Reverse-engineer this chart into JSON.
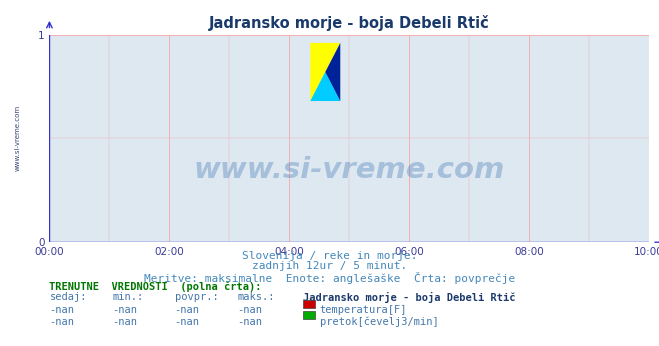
{
  "title": "Jadransko morje - boja Debeli Rtič",
  "title_color": "#1a3a6b",
  "bg_color": "#ffffff",
  "plot_bg_color": "#dde8f0",
  "grid_color": "#ff9999",
  "axis_color": "#3333cc",
  "watermark_text": "www.si-vreme.com",
  "watermark_color": "#1a5aaa",
  "watermark_alpha": 0.28,
  "sidebar_text": "www.si-vreme.com",
  "sidebar_bg": "#aabbcc",
  "sidebar_color": "#334477",
  "xlim": [
    0,
    10
  ],
  "ylim": [
    0,
    1
  ],
  "xticks": [
    0,
    2,
    4,
    6,
    8,
    10
  ],
  "xticklabels": [
    "00:00",
    "02:00",
    "04:00",
    "06:00",
    "08:00",
    "10:00"
  ],
  "yticks": [
    0,
    1
  ],
  "yticklabels": [
    "0",
    "1"
  ],
  "tick_color": "#3a3a99",
  "tick_fontsize": 7.5,
  "subtitle_lines": [
    "Slovenija / reke in morje.",
    "zadnjih 12ur / 5 minut.",
    "Meritve: maksimalne  Enote: anglešaške  Črta: povprečje"
  ],
  "subtitle_color": "#4488bb",
  "subtitle_fontsize": 8,
  "table_header": "TRENUTNE  VREDNOSTI  (polna črta):",
  "table_header_color": "#007700",
  "table_header_fontsize": 7.5,
  "col_headers": [
    "sedaj:",
    "min.:",
    "povpr.:",
    "maks.:"
  ],
  "col_header_color": "#4477aa",
  "col_header_fontsize": 7.5,
  "rows": [
    [
      "-nan",
      "-nan",
      "-nan",
      "-nan"
    ],
    [
      "-nan",
      "-nan",
      "-nan",
      "-nan"
    ]
  ],
  "row_color": "#4477aa",
  "row_fontsize": 7.5,
  "legend_title": "Jadransko morje - boja Debeli Rtič",
  "legend_title_color": "#1a3a6b",
  "legend_title_fontsize": 7.5,
  "legend_items": [
    {
      "label": "temperatura[F]",
      "color": "#cc0000"
    },
    {
      "label": "pretok[čevelj3/min]",
      "color": "#00aa00"
    }
  ],
  "legend_fontsize": 7.5,
  "logo_triangles": [
    {
      "points": [
        [
          0,
          1
        ],
        [
          0,
          0
        ],
        [
          1,
          1
        ]
      ],
      "color": "#ffff00"
    },
    {
      "points": [
        [
          0,
          0
        ],
        [
          0.5,
          0.5
        ],
        [
          1,
          0
        ]
      ],
      "color": "#00ccff"
    },
    {
      "points": [
        [
          1,
          1
        ],
        [
          0.5,
          0.5
        ],
        [
          1,
          0
        ]
      ],
      "color": "#002299"
    }
  ]
}
